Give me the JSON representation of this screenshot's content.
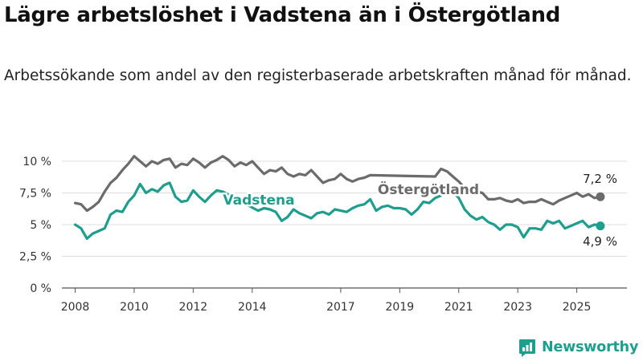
{
  "title": "Lägre arbetslöshet i Vadstena än i Östergötland",
  "subtitle": "Arbetssökande som andel av den registerbaserade arbetskraften månad för månad.",
  "brand": {
    "name": "Newsworthy",
    "color": "#1e9e8c",
    "icon": "bar-chart-logo-icon"
  },
  "chart_data": {
    "type": "line",
    "title": "Lägre arbetslöshet i Vadstena än i Östergötland",
    "subtitle": "Arbetssökande som andel av den registerbaserade arbetskraften månad för månad.",
    "xlabel": "",
    "ylabel": "",
    "xlim": [
      2007.55,
      2026.7
    ],
    "ylim": [
      0,
      10
    ],
    "y_ticks": [
      0,
      2.5,
      5,
      7.5,
      10
    ],
    "y_tick_labels": [
      "0 %",
      "2,5 %",
      "5 %",
      "7,5 %",
      "10 %"
    ],
    "x_ticks": [
      2008,
      2010,
      2012,
      2014,
      2017,
      2019,
      2021,
      2023,
      2025
    ],
    "x_tick_labels": [
      "2008",
      "2010",
      "2012",
      "2014",
      "2017",
      "2019",
      "2021",
      "2023",
      "2025"
    ],
    "grid": "horizontal",
    "legend": "inline labels",
    "series": [
      {
        "name": "Östergötland",
        "color": "#6b6b6b",
        "end_label": "7,2 %",
        "x": [
          2008.0,
          2008.2,
          2008.4,
          2008.6,
          2008.8,
          2009.0,
          2009.2,
          2009.4,
          2009.6,
          2009.8,
          2010.0,
          2010.2,
          2010.4,
          2010.6,
          2010.8,
          2011.0,
          2011.2,
          2011.4,
          2011.6,
          2011.8,
          2012.0,
          2012.2,
          2012.4,
          2012.6,
          2012.8,
          2013.0,
          2013.2,
          2013.4,
          2013.6,
          2013.8,
          2014.0,
          2014.2,
          2014.4,
          2014.6,
          2014.8,
          2015.0,
          2015.2,
          2015.4,
          2015.6,
          2015.8,
          2016.0,
          2016.2,
          2016.4,
          2016.6,
          2016.8,
          2017.0,
          2017.2,
          2017.4,
          2017.6,
          2017.8,
          2018.0,
          2020.2,
          2020.4,
          2020.6,
          2020.8,
          2021.0,
          2021.2,
          2021.4,
          2021.6,
          2021.8,
          2022.0,
          2022.2,
          2022.4,
          2022.6,
          2022.8,
          2023.0,
          2023.2,
          2023.4,
          2023.6,
          2023.8,
          2024.0,
          2024.2,
          2024.4,
          2024.6,
          2024.8,
          2025.0,
          2025.2,
          2025.4,
          2025.6,
          2025.8
        ],
        "y": [
          6.7,
          6.6,
          6.1,
          6.4,
          6.8,
          7.6,
          8.3,
          8.7,
          9.3,
          9.8,
          10.4,
          10.0,
          9.6,
          10.0,
          9.8,
          10.1,
          10.2,
          9.5,
          9.8,
          9.7,
          10.2,
          9.9,
          9.5,
          9.9,
          10.1,
          10.4,
          10.1,
          9.6,
          9.9,
          9.7,
          10.0,
          9.5,
          9.0,
          9.3,
          9.2,
          9.5,
          9.0,
          8.8,
          9.0,
          8.9,
          9.3,
          8.8,
          8.3,
          8.5,
          8.6,
          9.0,
          8.6,
          8.4,
          8.6,
          8.7,
          8.9,
          8.8,
          9.4,
          9.2,
          8.8,
          8.4,
          7.9,
          7.6,
          7.6,
          7.5,
          7.0,
          7.0,
          7.1,
          6.9,
          6.8,
          7.0,
          6.7,
          6.8,
          6.8,
          7.0,
          6.8,
          6.6,
          6.9,
          7.1,
          7.3,
          7.5,
          7.2,
          7.4,
          7.1,
          7.2
        ]
      },
      {
        "name": "Vadstena",
        "color": "#1e9e8c",
        "end_label": "4,9 %",
        "x": [
          2008.0,
          2008.2,
          2008.4,
          2008.6,
          2008.8,
          2009.0,
          2009.2,
          2009.4,
          2009.6,
          2009.8,
          2010.0,
          2010.2,
          2010.4,
          2010.6,
          2010.8,
          2011.0,
          2011.2,
          2011.4,
          2011.6,
          2011.8,
          2012.0,
          2012.2,
          2012.4,
          2012.6,
          2012.8,
          2013.0,
          2014.2,
          2014.4,
          2014.6,
          2014.8,
          2015.0,
          2015.2,
          2015.4,
          2015.6,
          2015.8,
          2016.0,
          2016.2,
          2016.4,
          2016.6,
          2016.8,
          2017.0,
          2017.2,
          2017.4,
          2017.6,
          2017.8,
          2018.0,
          2018.2,
          2018.4,
          2018.6,
          2018.8,
          2019.0,
          2019.2,
          2019.4,
          2019.6,
          2019.8,
          2020.0,
          2020.2,
          2020.4,
          2020.6,
          2020.8,
          2021.0,
          2021.2,
          2021.4,
          2021.6,
          2021.8,
          2022.0,
          2022.2,
          2022.4,
          2022.6,
          2022.8,
          2023.0,
          2023.2,
          2023.4,
          2023.6,
          2023.8,
          2024.0,
          2024.2,
          2024.4,
          2024.6,
          2024.8,
          2025.0,
          2025.2,
          2025.4,
          2025.6,
          2025.8
        ],
        "y": [
          5.0,
          4.7,
          3.9,
          4.3,
          4.5,
          4.7,
          5.8,
          6.1,
          6.0,
          6.8,
          7.3,
          8.2,
          7.5,
          7.8,
          7.6,
          8.1,
          8.3,
          7.2,
          6.8,
          6.9,
          7.7,
          7.2,
          6.8,
          7.3,
          7.7,
          7.6,
          6.1,
          6.3,
          6.2,
          6.0,
          5.3,
          5.6,
          6.2,
          5.9,
          5.7,
          5.5,
          5.9,
          6.0,
          5.8,
          6.2,
          6.1,
          6.0,
          6.3,
          6.5,
          6.6,
          7.0,
          6.1,
          6.4,
          6.5,
          6.3,
          6.3,
          6.2,
          5.8,
          6.2,
          6.8,
          6.7,
          7.1,
          7.3,
          7.9,
          7.6,
          7.1,
          6.2,
          5.7,
          5.4,
          5.6,
          5.2,
          5.0,
          4.6,
          5.0,
          5.0,
          4.8,
          4.0,
          4.7,
          4.7,
          4.6,
          5.3,
          5.1,
          5.3,
          4.7,
          4.9,
          5.1,
          5.3,
          4.8,
          5.0,
          4.9
        ]
      }
    ]
  }
}
